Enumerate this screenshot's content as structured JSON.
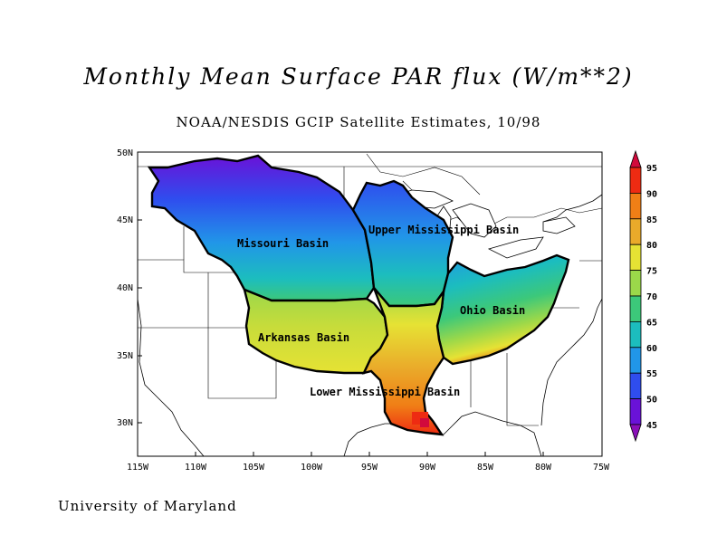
{
  "title": "Monthly Mean Surface PAR flux (W/m**2)",
  "subtitle": "NOAA/NESDIS GCIP Satellite Estimates, 10/98",
  "footer": "University of Maryland",
  "map": {
    "lat_ticks": [
      "50N",
      "45N",
      "40N",
      "35N",
      "30N"
    ],
    "lon_ticks": [
      "115W",
      "110W",
      "105W",
      "100W",
      "95W",
      "90W",
      "85W",
      "80W",
      "75W"
    ],
    "basins": [
      {
        "id": "missouri",
        "label": "Missouri Basin"
      },
      {
        "id": "upper-mississippi",
        "label": "Upper Mississippi Basin"
      },
      {
        "id": "ohio",
        "label": "Ohio Basin"
      },
      {
        "id": "arkansas",
        "label": "Arkansas Basin"
      },
      {
        "id": "lower-mississippi",
        "label": "Lower Mississippi Basin"
      }
    ]
  },
  "colorbar": {
    "levels": [
      "95",
      "90",
      "85",
      "80",
      "75",
      "70",
      "65",
      "60",
      "55",
      "50",
      "45"
    ],
    "colors": [
      "#d20a3c",
      "#ee2b12",
      "#f07f16",
      "#eaaa2a",
      "#e6e234",
      "#9bd84a",
      "#3cc87a",
      "#1cbdbe",
      "#2196e8",
      "#2f4dee",
      "#6a12d8",
      "#8a10b8"
    ]
  }
}
